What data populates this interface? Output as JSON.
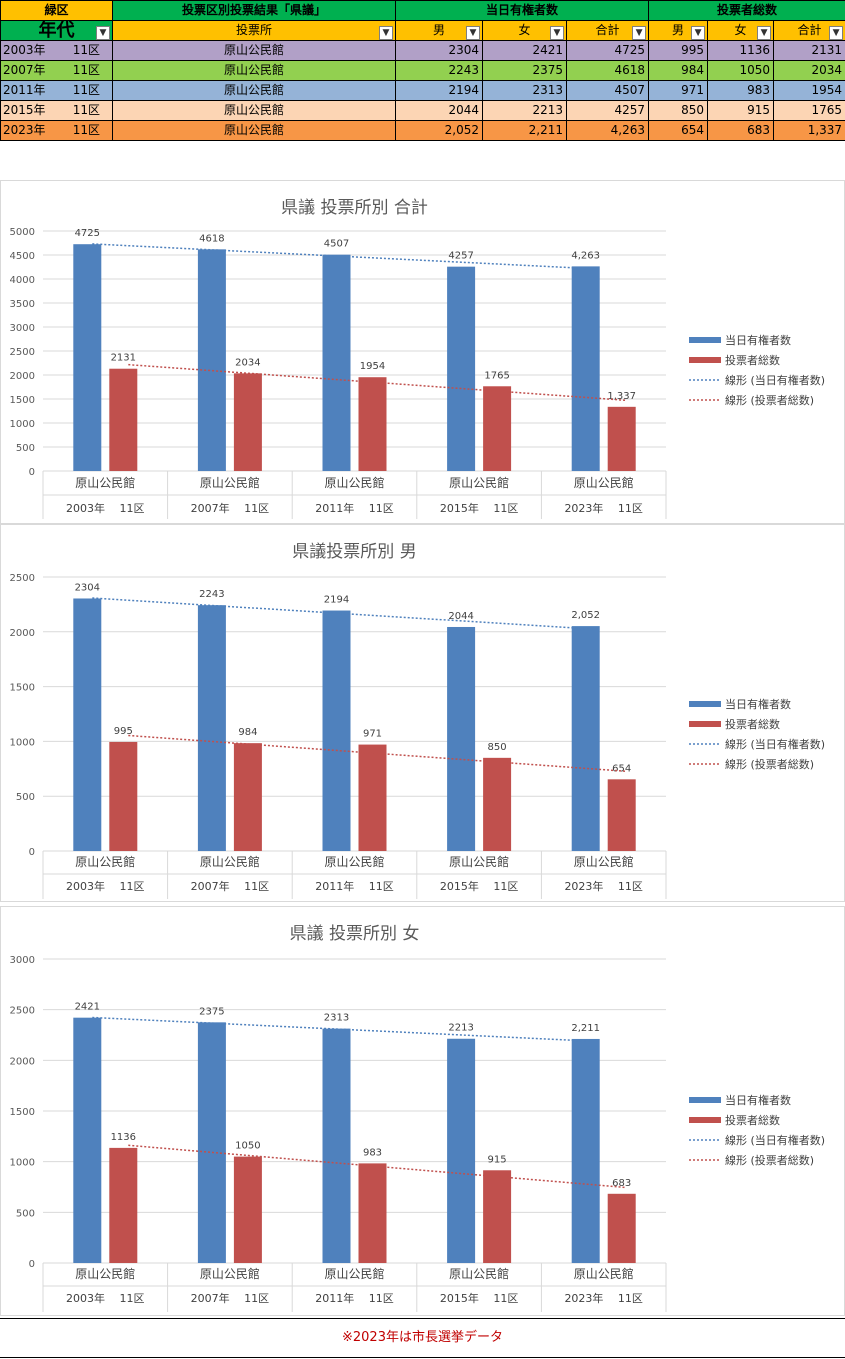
{
  "header": {
    "area": "緑区",
    "title": "投票区別投票結果「県議」",
    "eligible_header": "当日有権者数",
    "voters_header": "投票者総数"
  },
  "subheader": {
    "nendai": "年代",
    "place": "投票所",
    "male": "男",
    "female": "女",
    "total": "合計"
  },
  "colors": {
    "orange": "#ffc000",
    "green": "#00b050",
    "row_2003": "#b1a0c7",
    "row_2007": "#92d050",
    "row_2011": "#95b3d7",
    "row_2015": "#fcd5b4",
    "row_2023": "#f79646",
    "bar_eligible": "#4f81bd",
    "bar_voters": "#c0504d"
  },
  "rows": [
    {
      "year": "2003年",
      "district": "11区",
      "place": "原山公民館",
      "e_m": "2304",
      "e_f": "2421",
      "e_t": "4725",
      "v_m": "995",
      "v_f": "1136",
      "v_t": "2131"
    },
    {
      "year": "2007年",
      "district": "11区",
      "place": "原山公民館",
      "e_m": "2243",
      "e_f": "2375",
      "e_t": "4618",
      "v_m": "984",
      "v_f": "1050",
      "v_t": "2034"
    },
    {
      "year": "2011年",
      "district": "11区",
      "place": "原山公民館",
      "e_m": "2194",
      "e_f": "2313",
      "e_t": "4507",
      "v_m": "971",
      "v_f": "983",
      "v_t": "1954"
    },
    {
      "year": "2015年",
      "district": "11区",
      "place": "原山公民館",
      "e_m": "2044",
      "e_f": "2213",
      "e_t": "4257",
      "v_m": "850",
      "v_f": "915",
      "v_t": "1765"
    },
    {
      "year": "2023年",
      "district": "11区",
      "place": "原山公民館",
      "e_m": "2,052",
      "e_f": "2,211",
      "e_t": "4,263",
      "v_m": "654",
      "v_f": "683",
      "v_t": "1,337"
    }
  ],
  "chart_data": [
    {
      "type": "bar",
      "title": "県議  投票所別  合計",
      "categories": [
        "原山公民館",
        "原山公民館",
        "原山公民館",
        "原山公民館",
        "原山公民館"
      ],
      "groups": [
        "2003年　 11区",
        "2007年　 11区",
        "2011年　 11区",
        "2015年　 11区",
        "2023年　 11区"
      ],
      "series": [
        {
          "name": "当日有権者数",
          "values": [
            4725,
            4618,
            4507,
            4257,
            4263
          ],
          "labels": [
            "4725",
            "4618",
            "4507",
            "4257",
            "4,263"
          ]
        },
        {
          "name": "投票者総数",
          "values": [
            2131,
            2034,
            1954,
            1765,
            1337
          ],
          "labels": [
            "2131",
            "2034",
            "1954",
            "1765",
            "1,337"
          ]
        }
      ],
      "trend_labels": [
        "線形 (当日有権者数)",
        "線形 (投票者総数)"
      ],
      "ylim": [
        0,
        5000
      ],
      "yticks": [
        0,
        500,
        1000,
        1500,
        2000,
        2500,
        3000,
        3500,
        4000,
        4500,
        5000
      ],
      "grid": true,
      "legend": "right"
    },
    {
      "type": "bar",
      "title": "県議投票所別  男",
      "categories": [
        "原山公民館",
        "原山公民館",
        "原山公民館",
        "原山公民館",
        "原山公民館"
      ],
      "groups": [
        "2003年　 11区",
        "2007年　 11区",
        "2011年　 11区",
        "2015年　 11区",
        "2023年　 11区"
      ],
      "series": [
        {
          "name": "当日有権者数",
          "values": [
            2304,
            2243,
            2194,
            2044,
            2052
          ],
          "labels": [
            "2304",
            "2243",
            "2194",
            "2044",
            "2,052"
          ]
        },
        {
          "name": "投票者総数",
          "values": [
            995,
            984,
            971,
            850,
            654
          ],
          "labels": [
            "995",
            "984",
            "971",
            "850",
            "654"
          ]
        }
      ],
      "trend_labels": [
        "線形 (当日有権者数)",
        "線形 (投票者総数)"
      ],
      "ylim": [
        0,
        2500
      ],
      "yticks": [
        0,
        500,
        1000,
        1500,
        2000,
        2500
      ],
      "grid": true,
      "legend": "right"
    },
    {
      "type": "bar",
      "title": "県議  投票所別  女",
      "categories": [
        "原山公民館",
        "原山公民館",
        "原山公民館",
        "原山公民館",
        "原山公民館"
      ],
      "groups": [
        "2003年　 11区",
        "2007年　 11区",
        "2011年　 11区",
        "2015年　 11区",
        "2023年　 11区"
      ],
      "series": [
        {
          "name": "当日有権者数",
          "values": [
            2421,
            2375,
            2313,
            2213,
            2211
          ],
          "labels": [
            "2421",
            "2375",
            "2313",
            "2213",
            "2,211"
          ]
        },
        {
          "name": "投票者総数",
          "values": [
            1136,
            1050,
            983,
            915,
            683
          ],
          "labels": [
            "1136",
            "1050",
            "983",
            "915",
            "683"
          ]
        }
      ],
      "trend_labels": [
        "線形 (当日有権者数)",
        "線形 (投票者総数)"
      ],
      "ylim": [
        0,
        3000
      ],
      "yticks": [
        0,
        500,
        1000,
        1500,
        2000,
        2500,
        3000
      ],
      "grid": true,
      "legend": "right"
    }
  ],
  "note": "※2023年は市長選挙データ"
}
